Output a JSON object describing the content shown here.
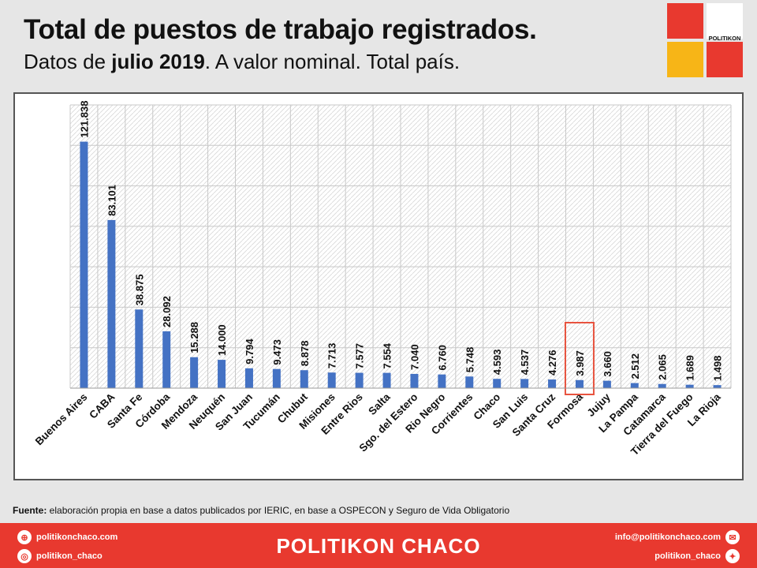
{
  "header": {
    "title": "Total de puestos de trabajo registrados.",
    "subtitle_pre": "Datos de ",
    "subtitle_bold": "julio 2019",
    "subtitle_post": ". A valor nominal. Total país."
  },
  "logo": {
    "brand": "POLITIKON"
  },
  "chart_data": {
    "type": "bar",
    "categories": [
      "Buenos Aires",
      "CABA",
      "Santa Fe",
      "Córdoba",
      "Mendoza",
      "Neuquén",
      "San Juan",
      "Tucumán",
      "Chubut",
      "Misiones",
      "Entre Rios",
      "Salta",
      "Sgo. del Estero",
      "Rio Negro",
      "Corrientes",
      "Chaco",
      "San Luis",
      "Santa Cruz",
      "Formosa",
      "Jujuy",
      "La Pampa",
      "Catamarca",
      "Tierra del Fuego",
      "La Rioja"
    ],
    "values": [
      121838,
      83101,
      38875,
      28092,
      15288,
      14000,
      9794,
      9473,
      8878,
      7713,
      7577,
      7554,
      7040,
      6760,
      5748,
      4593,
      4537,
      4276,
      3987,
      3660,
      2512,
      2065,
      1689,
      1498
    ],
    "value_labels": [
      "121.838",
      "83.101",
      "38.875",
      "28.092",
      "15.288",
      "14.000",
      "9.794",
      "9.473",
      "8.878",
      "7.713",
      "7.577",
      "7.554",
      "7.040",
      "6.760",
      "5.748",
      "4.593",
      "4.537",
      "4.276",
      "3.987",
      "3.660",
      "2.512",
      "2.065",
      "1.689",
      "1.498"
    ],
    "ylim": [
      0,
      140000
    ],
    "highlight": "Formosa",
    "bar_color": "#4472c4",
    "highlight_color": "#e8533f",
    "grid": true
  },
  "source": {
    "label": "Fuente:",
    "text": " elaboración propia en base a datos publicados por IERIC, en base a OSPECON y Seguro de Vida Obligatorio"
  },
  "footer": {
    "brand": "POLITIKON CHACO",
    "web": "politikonchaco.com",
    "instagram": "politikon_chaco",
    "email": "info@politikonchaco.com",
    "twitter": "politikon_chaco"
  }
}
